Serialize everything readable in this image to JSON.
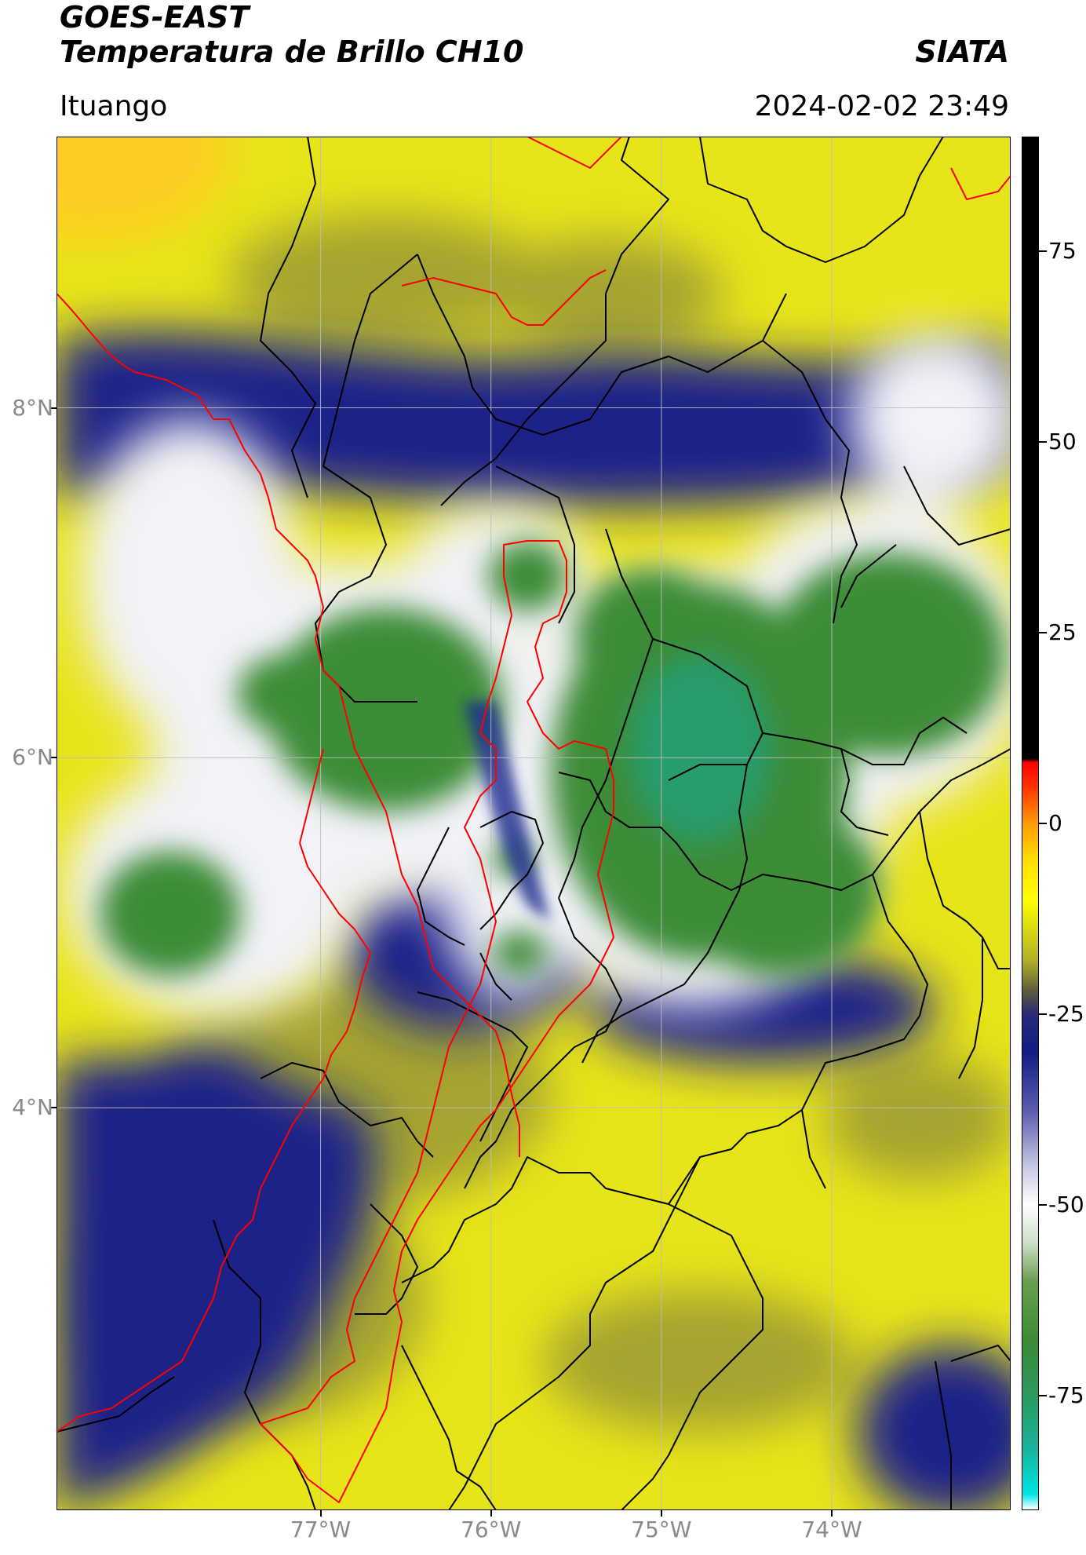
{
  "header": {
    "title_line1": "GOES-EAST",
    "title_line2": "Temperatura de Brillo CH10",
    "brand": "SIATA",
    "region": "Ituango",
    "timestamp": "2024-02-02 23:49"
  },
  "map": {
    "lat_labels": [
      "8°N",
      "6°N",
      "4°N"
    ],
    "lon_labels": [
      "77°W",
      "76°W",
      "75°W",
      "74°W"
    ],
    "lat_values": [
      8,
      6,
      4
    ],
    "lon_values": [
      -77,
      -76,
      -75,
      -74
    ],
    "extent": {
      "lon_min": -78.55,
      "lon_max": -72.95,
      "lat_min": 1.7,
      "lat_max": 9.55
    },
    "grid": true
  },
  "colorbar": {
    "labels": [
      "75",
      "50",
      "25",
      "0",
      "-25",
      "-50",
      "-75"
    ],
    "values": [
      75,
      50,
      25,
      0,
      -25,
      -50,
      -75
    ],
    "range": [
      -90,
      90
    ],
    "stops": [
      {
        "v": -90,
        "c": "#ffffff"
      },
      {
        "v": -88,
        "c": "#00e5e5"
      },
      {
        "v": -82,
        "c": "#19b49c"
      },
      {
        "v": -75,
        "c": "#2a9a5e"
      },
      {
        "v": -68,
        "c": "#3a8a35"
      },
      {
        "v": -60,
        "c": "#6aa050"
      },
      {
        "v": -55,
        "c": "#cfdfc8"
      },
      {
        "v": -50,
        "c": "#ffffff"
      },
      {
        "v": -45,
        "c": "#c8c8e4"
      },
      {
        "v": -38,
        "c": "#6060b0"
      },
      {
        "v": -30,
        "c": "#101c84"
      },
      {
        "v": -25,
        "c": "#2a2a78"
      },
      {
        "v": -22,
        "c": "#5c5c3a"
      },
      {
        "v": -18,
        "c": "#b0b02a"
      },
      {
        "v": -10,
        "c": "#ffff00"
      },
      {
        "v": -5,
        "c": "#ffe000"
      },
      {
        "v": 0,
        "c": "#ff9a00"
      },
      {
        "v": 5,
        "c": "#ff3000"
      },
      {
        "v": 8,
        "c": "#ff0000"
      },
      {
        "v": 8.5,
        "c": "#000000"
      },
      {
        "v": 90,
        "c": "#000000"
      }
    ]
  },
  "colors": {
    "cold_cloud": "#3a8a35",
    "cloud_edge": "#ffffff",
    "cirrus": "#101c84",
    "warm": "#ffff00",
    "antioquia_border": "#ff0000",
    "borders": "#000000"
  }
}
